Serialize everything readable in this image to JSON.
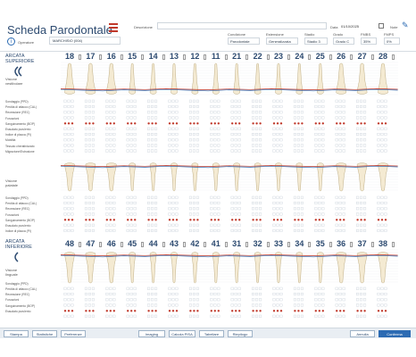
{
  "header": {
    "title": "Scheda Parodontale",
    "description_label": "Descrizione",
    "date_label": "Data",
    "date_value": "01/10/2025",
    "note_label": "Note"
  },
  "operator": {
    "label": "Operatore",
    "value": "MARCHISIO (004)"
  },
  "controls": [
    {
      "label": "Condizione",
      "value": "Parodontale"
    },
    {
      "label": "Estensione",
      "value": "Generalizzata"
    },
    {
      "label": "Stadio",
      "value": "Stadio 3"
    },
    {
      "label": "Grado",
      "value": "Grado C"
    },
    {
      "label": "FMBS",
      "value": "35%"
    },
    {
      "label": "FMPS",
      "value": "0%"
    }
  ],
  "upper": {
    "arch_title_1": "ARCATA",
    "arch_title_2": "SUPERIORE",
    "view_1": "Visione",
    "view_1b": "vestibolare",
    "view_2": "Visione",
    "view_2b": "palatale",
    "teeth": [
      "18",
      "17",
      "16",
      "15",
      "14",
      "13",
      "12",
      "11",
      "21",
      "22",
      "23",
      "24",
      "25",
      "26",
      "27",
      "28"
    ]
  },
  "lower": {
    "arch_title_1": "ARCATA",
    "arch_title_2": "INFERIORE",
    "view_1": "Visione",
    "view_1b": "linguale",
    "teeth": [
      "48",
      "47",
      "46",
      "45",
      "44",
      "43",
      "42",
      "41",
      "31",
      "32",
      "33",
      "34",
      "35",
      "36",
      "37",
      "38"
    ]
  },
  "rows_upper_vest": [
    "Sondaggio (PPD)",
    "Perdita di attacco (CAL)",
    "Recessione (REC)",
    "Forcazioni",
    "Sanguinamento (BOP)",
    "Essudato purulento",
    "Indice di placca (PI)",
    "Mobilità",
    "Tessuto cheratinizzato",
    "Migrazione/Estrusione"
  ],
  "rows_upper_pal": [
    "Sondaggio (PPD)",
    "Perdita di attacco (CAL)",
    "Recessione (REC)",
    "Forcazioni",
    "Sanguinamento (BOP)",
    "Essudato purulento",
    "Indice di placca (PI)"
  ],
  "rows_lower": [
    "Sondaggio (PPD)",
    "Perdita di attacco (CAL)",
    "Recessione (REC)",
    "Forcazioni",
    "Sanguinamento (BOP)",
    "Essudato purulento"
  ],
  "footer": {
    "buttons": [
      "Stampa",
      "Statistiche",
      "Preferenze",
      "Imaging",
      "Calcola PISA",
      "Tabellare",
      "Riepilogo"
    ],
    "cancel": "Annulla",
    "confirm": "Conferma"
  },
  "colors": {
    "accent": "#2c6bb3",
    "title": "#2c4a70",
    "bleeding": "#c0392b"
  }
}
